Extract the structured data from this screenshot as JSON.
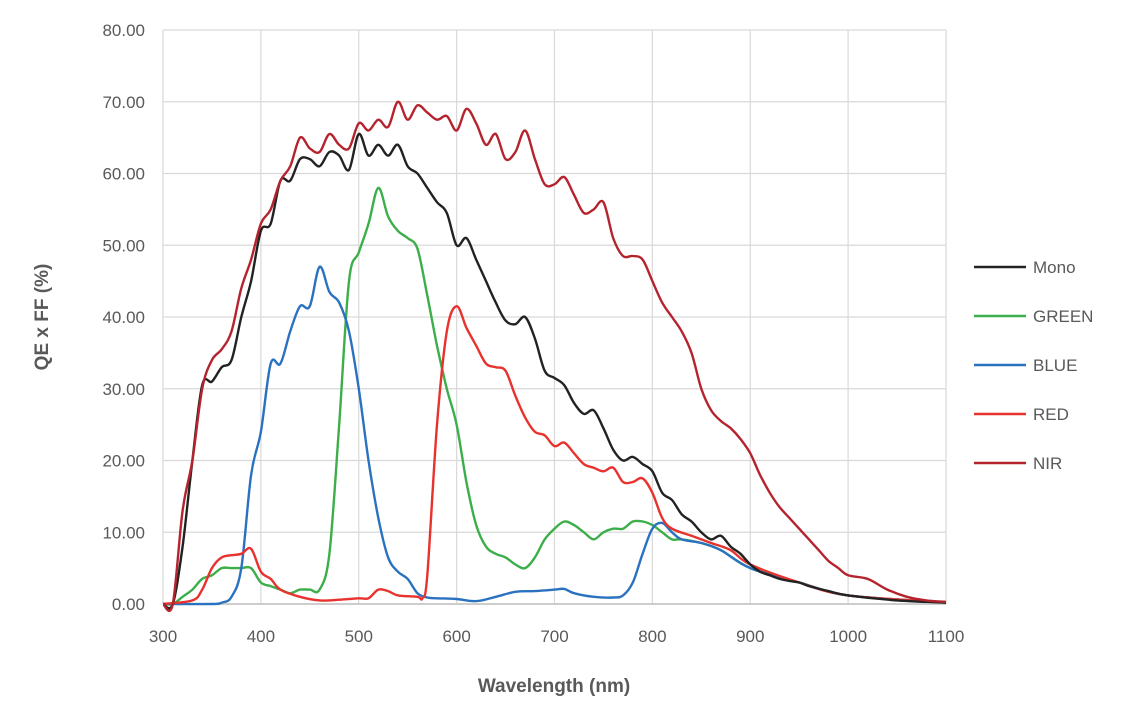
{
  "chart_data": {
    "type": "line",
    "title": "",
    "xlabel": "Wavelength (nm)",
    "ylabel": "QE x FF (%)",
    "xlim": [
      300,
      1100
    ],
    "ylim": [
      0,
      80
    ],
    "xticks": [
      "300",
      "400",
      "500",
      "600",
      "700",
      "800",
      "900",
      "1000",
      "1100"
    ],
    "yticks": [
      "0.00",
      "10.00",
      "20.00",
      "30.00",
      "40.00",
      "50.00",
      "60.00",
      "70.00",
      "80.00"
    ],
    "grid": true,
    "legend_position": "right",
    "series": [
      {
        "name": "Mono",
        "color": "#222222",
        "points": [
          [
            300,
            0
          ],
          [
            310,
            0
          ],
          [
            320,
            8
          ],
          [
            330,
            20
          ],
          [
            340,
            30.5
          ],
          [
            350,
            31
          ],
          [
            360,
            33
          ],
          [
            370,
            34
          ],
          [
            380,
            40
          ],
          [
            390,
            45
          ],
          [
            400,
            52
          ],
          [
            410,
            53
          ],
          [
            420,
            59
          ],
          [
            430,
            59
          ],
          [
            440,
            62
          ],
          [
            450,
            62
          ],
          [
            460,
            61
          ],
          [
            470,
            63
          ],
          [
            480,
            62.5
          ],
          [
            490,
            60.5
          ],
          [
            500,
            65.5
          ],
          [
            510,
            62.5
          ],
          [
            520,
            64
          ],
          [
            530,
            62.5
          ],
          [
            540,
            64
          ],
          [
            550,
            61
          ],
          [
            560,
            60
          ],
          [
            570,
            58
          ],
          [
            580,
            56
          ],
          [
            590,
            54.5
          ],
          [
            600,
            50
          ],
          [
            610,
            51
          ],
          [
            620,
            48
          ],
          [
            630,
            45
          ],
          [
            640,
            42
          ],
          [
            650,
            39.5
          ],
          [
            660,
            39
          ],
          [
            670,
            40
          ],
          [
            680,
            37
          ],
          [
            690,
            32.5
          ],
          [
            700,
            31.5
          ],
          [
            710,
            30.5
          ],
          [
            720,
            28
          ],
          [
            730,
            26.5
          ],
          [
            740,
            27
          ],
          [
            750,
            24.5
          ],
          [
            760,
            21.5
          ],
          [
            770,
            20
          ],
          [
            780,
            20.5
          ],
          [
            790,
            19.5
          ],
          [
            800,
            18.5
          ],
          [
            810,
            15.5
          ],
          [
            820,
            14.5
          ],
          [
            830,
            12.5
          ],
          [
            840,
            11.5
          ],
          [
            850,
            10
          ],
          [
            860,
            9
          ],
          [
            870,
            9.5
          ],
          [
            880,
            8
          ],
          [
            890,
            7
          ],
          [
            900,
            5.5
          ],
          [
            910,
            4.5
          ],
          [
            920,
            4
          ],
          [
            930,
            3.5
          ],
          [
            940,
            3.2
          ],
          [
            950,
            3
          ],
          [
            960,
            2.5
          ],
          [
            980,
            1.8
          ],
          [
            1000,
            1.2
          ],
          [
            1050,
            0.5
          ],
          [
            1100,
            0.2
          ]
        ]
      },
      {
        "name": "GREEN",
        "color": "#3cae4a",
        "points": [
          [
            300,
            0
          ],
          [
            310,
            0
          ],
          [
            320,
            1
          ],
          [
            330,
            2
          ],
          [
            340,
            3.5
          ],
          [
            350,
            4
          ],
          [
            360,
            5
          ],
          [
            370,
            5
          ],
          [
            380,
            5
          ],
          [
            390,
            5
          ],
          [
            400,
            3
          ],
          [
            410,
            2.5
          ],
          [
            420,
            2
          ],
          [
            430,
            1.5
          ],
          [
            440,
            2
          ],
          [
            450,
            2
          ],
          [
            460,
            2
          ],
          [
            470,
            7
          ],
          [
            480,
            25
          ],
          [
            490,
            45
          ],
          [
            500,
            49
          ],
          [
            510,
            53
          ],
          [
            520,
            58
          ],
          [
            530,
            54
          ],
          [
            540,
            52
          ],
          [
            550,
            51
          ],
          [
            560,
            49.5
          ],
          [
            570,
            43
          ],
          [
            580,
            36
          ],
          [
            590,
            30
          ],
          [
            600,
            25
          ],
          [
            610,
            17
          ],
          [
            620,
            11
          ],
          [
            630,
            8
          ],
          [
            640,
            7
          ],
          [
            650,
            6.5
          ],
          [
            660,
            5.5
          ],
          [
            670,
            5
          ],
          [
            680,
            6.5
          ],
          [
            690,
            9
          ],
          [
            700,
            10.5
          ],
          [
            710,
            11.5
          ],
          [
            720,
            11
          ],
          [
            730,
            10
          ],
          [
            740,
            9
          ],
          [
            750,
            10
          ],
          [
            760,
            10.5
          ],
          [
            770,
            10.5
          ],
          [
            780,
            11.5
          ],
          [
            790,
            11.5
          ],
          [
            800,
            11
          ],
          [
            810,
            10
          ],
          [
            820,
            9
          ],
          [
            830,
            9
          ],
          [
            850,
            8.5
          ],
          [
            870,
            7.5
          ],
          [
            900,
            5
          ],
          [
            950,
            3
          ],
          [
            1000,
            1.2
          ],
          [
            1100,
            0.2
          ]
        ]
      },
      {
        "name": "BLUE",
        "color": "#2a72c0",
        "points": [
          [
            300,
            0
          ],
          [
            350,
            0
          ],
          [
            360,
            0.2
          ],
          [
            370,
            1
          ],
          [
            380,
            5
          ],
          [
            390,
            18
          ],
          [
            400,
            24
          ],
          [
            410,
            33.5
          ],
          [
            420,
            33.5
          ],
          [
            430,
            38
          ],
          [
            440,
            41.5
          ],
          [
            450,
            41.5
          ],
          [
            460,
            47
          ],
          [
            470,
            43.5
          ],
          [
            480,
            42
          ],
          [
            490,
            38
          ],
          [
            500,
            30
          ],
          [
            510,
            20
          ],
          [
            520,
            12
          ],
          [
            530,
            6.5
          ],
          [
            540,
            4.5
          ],
          [
            550,
            3.5
          ],
          [
            560,
            1.5
          ],
          [
            570,
            0.9
          ],
          [
            580,
            0.8
          ],
          [
            600,
            0.7
          ],
          [
            620,
            0.4
          ],
          [
            640,
            1
          ],
          [
            660,
            1.7
          ],
          [
            680,
            1.8
          ],
          [
            700,
            2
          ],
          [
            710,
            2.1
          ],
          [
            720,
            1.5
          ],
          [
            740,
            1
          ],
          [
            760,
            0.9
          ],
          [
            770,
            1.2
          ],
          [
            780,
            3
          ],
          [
            790,
            7
          ],
          [
            800,
            10.5
          ],
          [
            810,
            11.3
          ],
          [
            820,
            10
          ],
          [
            830,
            9
          ],
          [
            850,
            8.5
          ],
          [
            870,
            7.5
          ],
          [
            900,
            5
          ],
          [
            950,
            3
          ],
          [
            1000,
            1.2
          ],
          [
            1100,
            0.2
          ]
        ]
      },
      {
        "name": "RED",
        "color": "#e8322e",
        "points": [
          [
            300,
            0
          ],
          [
            330,
            0.5
          ],
          [
            340,
            2
          ],
          [
            350,
            5
          ],
          [
            360,
            6.5
          ],
          [
            370,
            6.8
          ],
          [
            380,
            7
          ],
          [
            390,
            7.7
          ],
          [
            400,
            4.5
          ],
          [
            410,
            3.5
          ],
          [
            420,
            2
          ],
          [
            440,
            1
          ],
          [
            460,
            0.5
          ],
          [
            480,
            0.6
          ],
          [
            500,
            0.8
          ],
          [
            510,
            0.8
          ],
          [
            520,
            2
          ],
          [
            530,
            1.8
          ],
          [
            540,
            1.2
          ],
          [
            560,
            1
          ],
          [
            565,
            0.8
          ],
          [
            570,
            4
          ],
          [
            580,
            25
          ],
          [
            590,
            38
          ],
          [
            600,
            41.5
          ],
          [
            610,
            38.5
          ],
          [
            620,
            36
          ],
          [
            630,
            33.5
          ],
          [
            640,
            33
          ],
          [
            650,
            32.5
          ],
          [
            660,
            29
          ],
          [
            670,
            26
          ],
          [
            680,
            24
          ],
          [
            690,
            23.5
          ],
          [
            700,
            22
          ],
          [
            710,
            22.5
          ],
          [
            720,
            21
          ],
          [
            730,
            19.5
          ],
          [
            740,
            19
          ],
          [
            750,
            18.5
          ],
          [
            760,
            19
          ],
          [
            770,
            17
          ],
          [
            780,
            17
          ],
          [
            790,
            17.5
          ],
          [
            800,
            15.5
          ],
          [
            810,
            12
          ],
          [
            820,
            10.5
          ],
          [
            840,
            9.5
          ],
          [
            860,
            8.5
          ],
          [
            880,
            7.5
          ],
          [
            900,
            5.5
          ],
          [
            950,
            3
          ],
          [
            1000,
            1.2
          ],
          [
            1100,
            0.2
          ]
        ]
      },
      {
        "name": "NIR",
        "color": "#b5242e",
        "points": [
          [
            300,
            0
          ],
          [
            310,
            0
          ],
          [
            320,
            13
          ],
          [
            330,
            20
          ],
          [
            340,
            30
          ],
          [
            350,
            34
          ],
          [
            360,
            35.5
          ],
          [
            370,
            38
          ],
          [
            380,
            44
          ],
          [
            390,
            48
          ],
          [
            400,
            53
          ],
          [
            410,
            55
          ],
          [
            420,
            59
          ],
          [
            430,
            61
          ],
          [
            440,
            65
          ],
          [
            450,
            63.5
          ],
          [
            460,
            63
          ],
          [
            470,
            65.5
          ],
          [
            480,
            64
          ],
          [
            490,
            63.5
          ],
          [
            500,
            67
          ],
          [
            510,
            66
          ],
          [
            520,
            67.5
          ],
          [
            530,
            66.5
          ],
          [
            540,
            70
          ],
          [
            550,
            67.5
          ],
          [
            560,
            69.5
          ],
          [
            570,
            68.5
          ],
          [
            580,
            67.5
          ],
          [
            590,
            68
          ],
          [
            600,
            66
          ],
          [
            610,
            69
          ],
          [
            620,
            67
          ],
          [
            630,
            64
          ],
          [
            640,
            65.5
          ],
          [
            650,
            62
          ],
          [
            660,
            63
          ],
          [
            670,
            66
          ],
          [
            680,
            62
          ],
          [
            690,
            58.5
          ],
          [
            700,
            58.5
          ],
          [
            710,
            59.5
          ],
          [
            720,
            57
          ],
          [
            730,
            54.5
          ],
          [
            740,
            55
          ],
          [
            750,
            56
          ],
          [
            760,
            51
          ],
          [
            770,
            48.5
          ],
          [
            780,
            48.5
          ],
          [
            790,
            48
          ],
          [
            800,
            45
          ],
          [
            810,
            42
          ],
          [
            820,
            40
          ],
          [
            830,
            38
          ],
          [
            840,
            35
          ],
          [
            850,
            30
          ],
          [
            860,
            27
          ],
          [
            870,
            25.5
          ],
          [
            880,
            24.5
          ],
          [
            890,
            23
          ],
          [
            900,
            21
          ],
          [
            910,
            18
          ],
          [
            920,
            15.5
          ],
          [
            930,
            13.5
          ],
          [
            940,
            12
          ],
          [
            950,
            10.5
          ],
          [
            960,
            9
          ],
          [
            970,
            7.5
          ],
          [
            980,
            6
          ],
          [
            990,
            5
          ],
          [
            1000,
            4
          ],
          [
            1020,
            3.5
          ],
          [
            1040,
            2
          ],
          [
            1060,
            1
          ],
          [
            1080,
            0.5
          ],
          [
            1100,
            0.3
          ]
        ]
      }
    ]
  }
}
